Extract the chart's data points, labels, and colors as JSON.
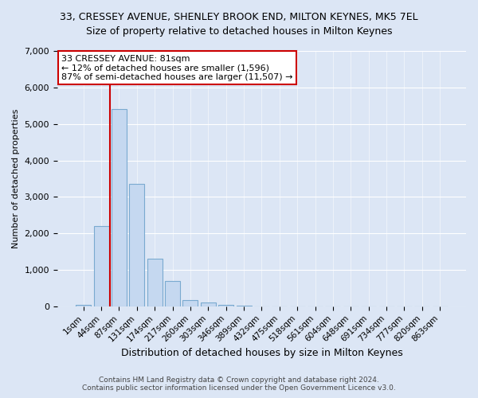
{
  "title": "33, CRESSEY AVENUE, SHENLEY BROOK END, MILTON KEYNES, MK5 7EL",
  "subtitle": "Size of property relative to detached houses in Milton Keynes",
  "xlabel": "Distribution of detached houses by size in Milton Keynes",
  "ylabel": "Number of detached properties",
  "footer_line1": "Contains HM Land Registry data © Crown copyright and database right 2024.",
  "footer_line2": "Contains public sector information licensed under the Open Government Licence v3.0.",
  "annotation_title": "33 CRESSEY AVENUE: 81sqm",
  "annotation_line1": "← 12% of detached houses are smaller (1,596)",
  "annotation_line2": "87% of semi-detached houses are larger (11,507) →",
  "bar_color": "#c5d8f0",
  "bar_edge_color": "#7aaad0",
  "highlight_color": "#cc0000",
  "annotation_box_color": "#ffffff",
  "annotation_box_edge": "#cc0000",
  "background_color": "#dce6f5",
  "plot_bg_color": "#dce6f5",
  "ylim": [
    0,
    7000
  ],
  "yticks": [
    0,
    1000,
    2000,
    3000,
    4000,
    5000,
    6000,
    7000
  ],
  "vline_x": 1.5,
  "categories": [
    "1sqm",
    "44sqm",
    "87sqm",
    "131sqm",
    "174sqm",
    "217sqm",
    "260sqm",
    "303sqm",
    "346sqm",
    "389sqm",
    "432sqm",
    "475sqm",
    "518sqm",
    "561sqm",
    "604sqm",
    "648sqm",
    "691sqm",
    "734sqm",
    "777sqm",
    "820sqm",
    "863sqm"
  ],
  "values": [
    50,
    2200,
    5400,
    3350,
    1300,
    700,
    170,
    100,
    50,
    15,
    5,
    2,
    1,
    0,
    0,
    0,
    0,
    0,
    0,
    0,
    0
  ]
}
